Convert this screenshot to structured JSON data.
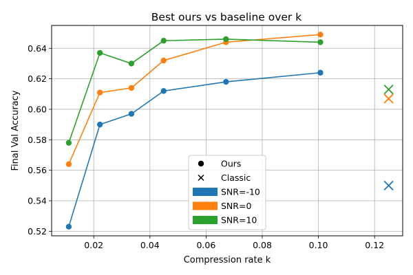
{
  "chart_data": {
    "type": "line",
    "title": "Best ours vs baseline over k",
    "xlabel": "Compression rate k",
    "ylabel": "Final Val Accuracy",
    "xlim": [
      0.005,
      0.13
    ],
    "ylim": [
      0.517,
      0.655
    ],
    "xticks": [
      0.02,
      0.04,
      0.06,
      0.08,
      0.1,
      0.12
    ],
    "xtick_labels": [
      "0.02",
      "0.04",
      "0.06",
      "0.08",
      "0.10",
      "0.12"
    ],
    "yticks": [
      0.52,
      0.54,
      0.56,
      0.58,
      0.6,
      0.62,
      0.64
    ],
    "ytick_labels": [
      "0.52",
      "0.54",
      "0.56",
      "0.58",
      "0.60",
      "0.62",
      "0.64"
    ],
    "grid": true,
    "legend": {
      "placement": "lower-center",
      "entries": [
        {
          "label": "Ours",
          "marker": "circle",
          "color": "#000000"
        },
        {
          "label": "Classic",
          "marker": "x",
          "color": "#000000"
        },
        {
          "label": "SNR=-10",
          "marker": "patch",
          "color": "#1f77b4"
        },
        {
          "label": "SNR=0",
          "marker": "patch",
          "color": "#ff7f0e"
        },
        {
          "label": "SNR=10",
          "marker": "patch",
          "color": "#2ca02c"
        }
      ]
    },
    "series": [
      {
        "name": "SNR=-10",
        "color": "#1f77b4",
        "ours": {
          "x": [
            0.0111,
            0.0222,
            0.0334,
            0.0449,
            0.0671,
            0.1007
          ],
          "y": [
            0.523,
            0.59,
            0.597,
            0.612,
            0.618,
            0.624
          ]
        },
        "classic": {
          "x": [
            0.125
          ],
          "y": [
            0.55
          ]
        }
      },
      {
        "name": "SNR=0",
        "color": "#ff7f0e",
        "ours": {
          "x": [
            0.0111,
            0.0222,
            0.0334,
            0.0449,
            0.0671,
            0.1007
          ],
          "y": [
            0.564,
            0.611,
            0.614,
            0.632,
            0.644,
            0.649
          ]
        },
        "classic": {
          "x": [
            0.125
          ],
          "y": [
            0.607
          ]
        }
      },
      {
        "name": "SNR=10",
        "color": "#2ca02c",
        "ours": {
          "x": [
            0.0111,
            0.0222,
            0.0334,
            0.0449,
            0.0671,
            0.1007
          ],
          "y": [
            0.578,
            0.637,
            0.63,
            0.645,
            0.646,
            0.644
          ]
        },
        "classic": {
          "x": [
            0.125
          ],
          "y": [
            0.613
          ]
        }
      }
    ]
  }
}
